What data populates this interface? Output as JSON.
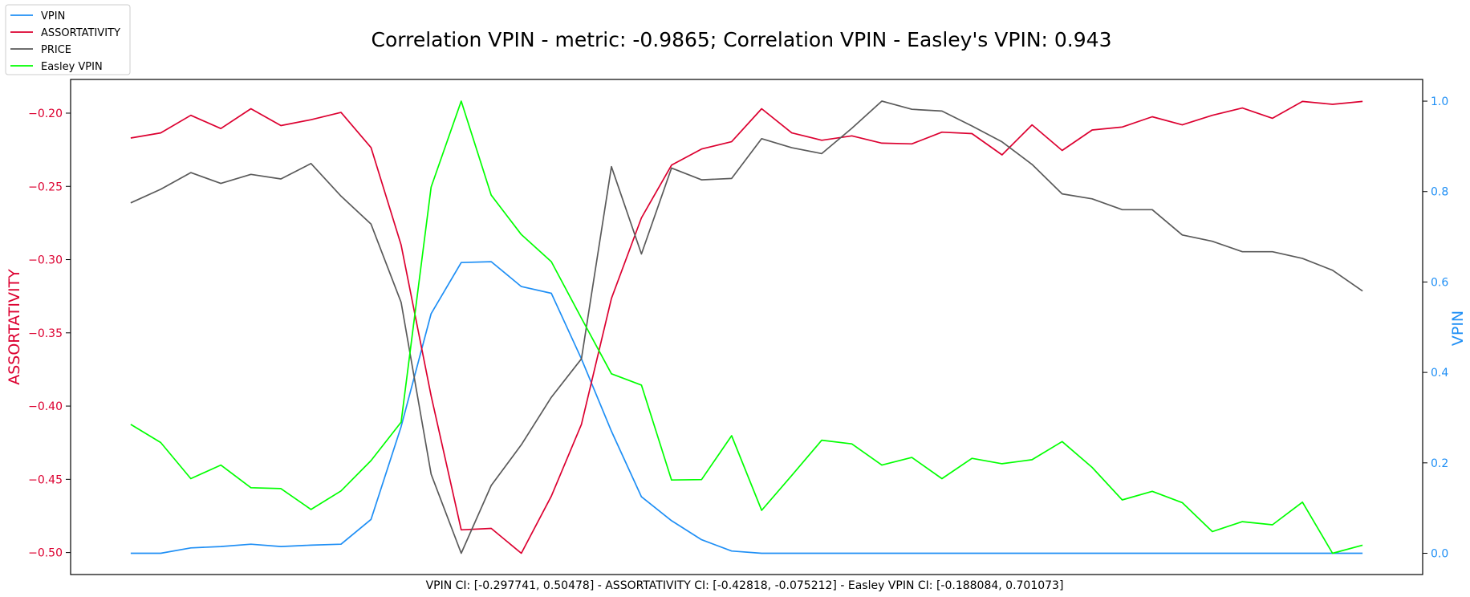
{
  "chart_data": {
    "type": "line",
    "title": "Correlation VPIN - metric: -0.9865; Correlation VPIN - Easley's VPIN: 0.943",
    "footer": "VPIN CI: [-0.297741, 0.50478] - ASSORTATIVITY CI: [-0.42818, -0.075212] - Easley VPIN CI: [-0.188084, 0.701073]",
    "ylabel_left": "ASSORTATIVITY",
    "ylabel_right": "VPIN",
    "ylim_left": [
      -0.515,
      -0.177
    ],
    "ylim_right": [
      -0.047,
      1.048
    ],
    "yticks_left": [
      -0.5,
      -0.45,
      -0.4,
      -0.35,
      -0.3,
      -0.25,
      -0.2
    ],
    "yticks_left_labels": [
      "−0.50",
      "−0.45",
      "−0.40",
      "−0.35",
      "−0.30",
      "−0.25",
      "−0.20"
    ],
    "yticks_right": [
      0.0,
      0.2,
      0.4,
      0.6,
      0.8,
      1.0
    ],
    "yticks_right_labels": [
      "0.0",
      "0.2",
      "0.4",
      "0.6",
      "0.8",
      "1.0"
    ],
    "xlim": [
      -2,
      43
    ],
    "grid": false,
    "legend": {
      "placement": "top-left",
      "entries": [
        {
          "label": "VPIN",
          "color": "#1f8ff5"
        },
        {
          "label": "ASSORTATIVITY",
          "color": "#dc0030"
        },
        {
          "label": "PRICE",
          "color": "#5a5a5a"
        },
        {
          "label": "Easley VPIN",
          "color": "#00ff00"
        }
      ]
    },
    "series": [
      {
        "name": "VPIN",
        "axis": "right",
        "color": "#1f8ff5",
        "values": [
          0.0,
          0.0,
          0.012,
          0.015,
          0.02,
          0.015,
          0.018,
          0.02,
          0.075,
          0.28,
          0.53,
          0.643,
          0.645,
          0.59,
          0.575,
          0.43,
          0.27,
          0.125,
          0.072,
          0.03,
          0.005,
          0.0,
          0.0,
          0.0,
          0.0,
          0.0,
          0.0,
          0.0,
          0.0,
          0.0,
          0.0,
          0.0,
          0.0,
          0.0,
          0.0,
          0.0,
          0.0,
          0.0,
          0.0,
          0.0,
          0.0,
          0.0
        ]
      },
      {
        "name": "ASSORTATIVITY",
        "axis": "left",
        "color": "#dc0030",
        "values": [
          -0.217,
          -0.2135,
          -0.2015,
          -0.2105,
          -0.197,
          -0.2085,
          -0.2045,
          -0.1995,
          -0.2235,
          -0.29,
          -0.393,
          -0.4845,
          -0.4835,
          -0.5005,
          -0.4615,
          -0.4125,
          -0.3265,
          -0.2715,
          -0.2355,
          -0.2245,
          -0.2195,
          -0.197,
          -0.2135,
          -0.2185,
          -0.2155,
          -0.2205,
          -0.221,
          -0.213,
          -0.214,
          -0.2285,
          -0.208,
          -0.2255,
          -0.2115,
          -0.2095,
          -0.2025,
          -0.208,
          -0.2015,
          -0.1965,
          -0.2035,
          -0.192,
          -0.194,
          -0.192
        ]
      },
      {
        "name": "PRICE",
        "axis": "right",
        "color": "#5a5a5a",
        "values": [
          0.775,
          0.805,
          0.842,
          0.818,
          0.838,
          0.828,
          0.862,
          0.79,
          0.728,
          0.555,
          0.175,
          0.0,
          0.15,
          0.24,
          0.345,
          0.43,
          0.855,
          0.662,
          0.852,
          0.826,
          0.829,
          0.917,
          0.897,
          0.884,
          0.94,
          1.0,
          0.982,
          0.978,
          0.945,
          0.91,
          0.86,
          0.795,
          0.784,
          0.76,
          0.76,
          0.704,
          0.69,
          0.667,
          0.667,
          0.652,
          0.626,
          0.58
        ]
      },
      {
        "name": "Easley VPIN",
        "axis": "right",
        "color": "#00ff00",
        "values": [
          0.285,
          0.245,
          0.165,
          0.195,
          0.145,
          0.143,
          0.097,
          0.138,
          0.205,
          0.29,
          0.81,
          1.0,
          0.792,
          0.705,
          0.645,
          0.52,
          0.397,
          0.372,
          0.162,
          0.163,
          0.26,
          0.095,
          0.172,
          0.25,
          0.242,
          0.195,
          0.212,
          0.165,
          0.21,
          0.198,
          0.207,
          0.247,
          0.19,
          0.118,
          0.137,
          0.112,
          0.048,
          0.07,
          0.063,
          0.113,
          0.0,
          0.018
        ]
      }
    ]
  }
}
